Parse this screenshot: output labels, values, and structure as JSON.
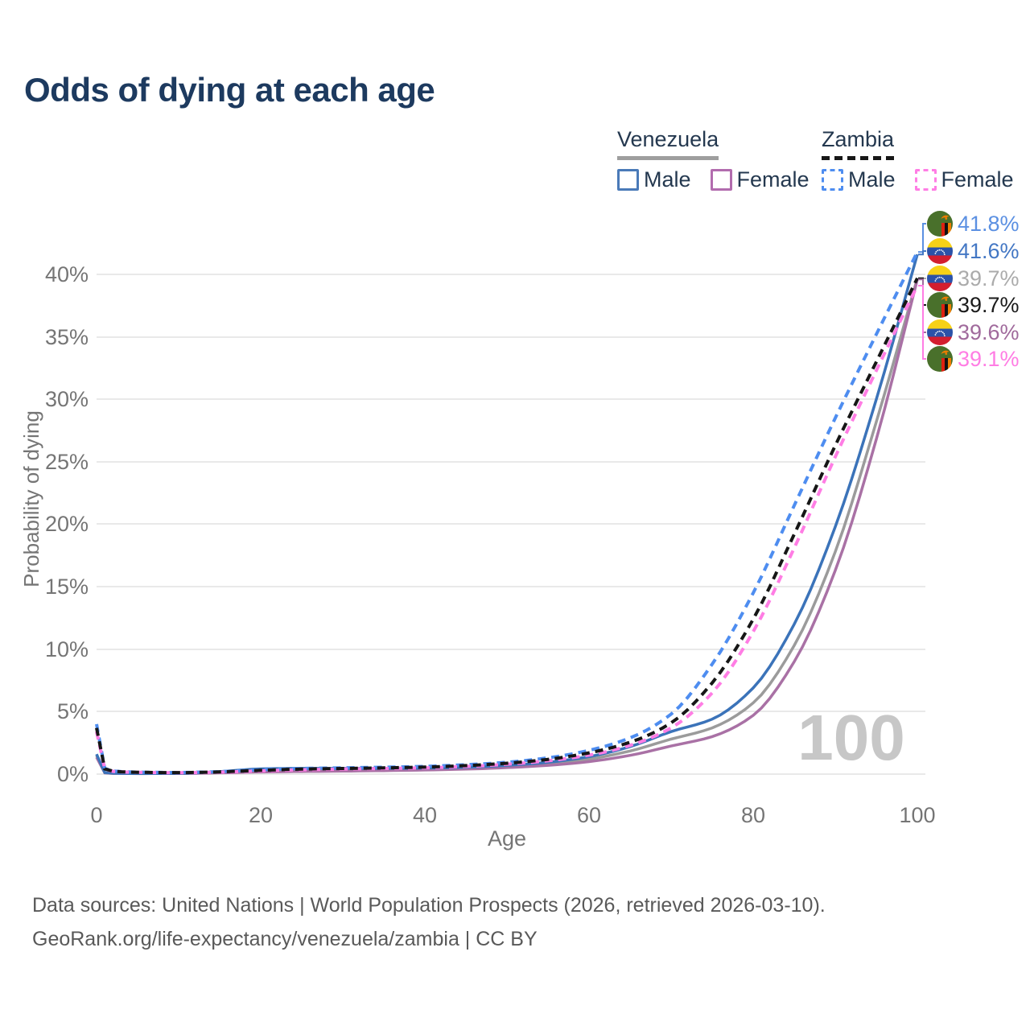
{
  "title": "Odds of dying at each age",
  "legend": {
    "venezuela": {
      "label": "Venezuela",
      "male_label": "Male",
      "female_label": "Female"
    },
    "zambia": {
      "label": "Zambia",
      "male_label": "Male",
      "female_label": "Female"
    }
  },
  "chart_data": {
    "type": "line",
    "title": "Odds of dying at each age",
    "xlabel": "Age",
    "ylabel": "Probability of dying",
    "x_range": [
      0,
      100
    ],
    "y_range_pct": [
      0,
      43
    ],
    "x_ticks": [
      "0",
      "20",
      "40",
      "60",
      "80",
      "100"
    ],
    "y_ticks": [
      "0%",
      "5%",
      "10%",
      "15%",
      "20%",
      "25%",
      "30%",
      "35%",
      "40%"
    ],
    "grid": "horizontal",
    "legend_position": "top-right",
    "watermark": "100",
    "ages": [
      0,
      1,
      2,
      5,
      10,
      15,
      20,
      25,
      30,
      35,
      40,
      45,
      50,
      55,
      60,
      65,
      70,
      75,
      80,
      85,
      90,
      95,
      100
    ],
    "series": [
      {
        "name": "Venezuela Both sexes",
        "country": "Venezuela",
        "sex": "Both",
        "style": "solid",
        "color": "#9B9B9B",
        "values_pct": [
          1.5,
          0.11,
          0.06,
          0.05,
          0.05,
          0.15,
          0.3,
          0.34,
          0.35,
          0.37,
          0.4,
          0.47,
          0.6,
          0.82,
          1.2,
          1.85,
          2.8,
          3.7,
          5.7,
          10.3,
          17.8,
          28.2,
          39.7
        ],
        "end_value": "39.7%"
      },
      {
        "name": "Venezuela Female",
        "country": "Venezuela",
        "sex": "Female",
        "style": "solid",
        "color": "#A971A5",
        "values_pct": [
          1.35,
          0.1,
          0.06,
          0.04,
          0.05,
          0.1,
          0.17,
          0.21,
          0.24,
          0.28,
          0.33,
          0.4,
          0.52,
          0.7,
          1.0,
          1.5,
          2.25,
          3.0,
          4.7,
          9.0,
          16.3,
          26.8,
          39.6
        ],
        "end_value": "39.6%"
      },
      {
        "name": "Venezuela Male",
        "country": "Venezuela",
        "sex": "Male",
        "style": "solid",
        "color": "#3B73B9",
        "values_pct": [
          1.6,
          0.12,
          0.07,
          0.05,
          0.06,
          0.2,
          0.42,
          0.46,
          0.46,
          0.46,
          0.48,
          0.55,
          0.7,
          0.95,
          1.4,
          2.2,
          3.4,
          4.4,
          6.9,
          12.0,
          19.8,
          30.0,
          41.6
        ],
        "end_value": "41.6%"
      },
      {
        "name": "Zambia Male",
        "country": "Zambia",
        "sex": "Male",
        "style": "dashed",
        "color": "#4E8DF0",
        "values_pct": [
          4.0,
          0.45,
          0.25,
          0.16,
          0.13,
          0.2,
          0.35,
          0.45,
          0.5,
          0.55,
          0.62,
          0.75,
          0.95,
          1.3,
          1.9,
          2.9,
          4.8,
          8.8,
          14.5,
          21.5,
          28.5,
          35.2,
          41.8
        ],
        "end_value": "41.8%"
      },
      {
        "name": "Zambia Female",
        "country": "Zambia",
        "sex": "Female",
        "style": "dashed",
        "color": "#FF7DE4",
        "values_pct": [
          3.4,
          0.4,
          0.22,
          0.14,
          0.11,
          0.16,
          0.26,
          0.34,
          0.4,
          0.45,
          0.5,
          0.61,
          0.79,
          1.07,
          1.52,
          2.3,
          3.7,
          6.5,
          11.4,
          18.1,
          25.4,
          32.3,
          39.1
        ],
        "end_value": "39.1%"
      },
      {
        "name": "Zambia Both sexes",
        "country": "Zambia",
        "sex": "Both",
        "style": "dashed",
        "color": "#161616",
        "values_pct": [
          3.7,
          0.42,
          0.23,
          0.15,
          0.12,
          0.18,
          0.3,
          0.4,
          0.45,
          0.5,
          0.56,
          0.68,
          0.87,
          1.18,
          1.7,
          2.55,
          4.1,
          7.3,
          12.4,
          19.2,
          26.3,
          33.0,
          39.7
        ],
        "end_value": "39.7%"
      }
    ],
    "end_labels": [
      {
        "value": "41.8%",
        "series": "Zambia Male",
        "flag": "zambia",
        "flag_ref": "#flag-zambia",
        "color": "#5B90E2"
      },
      {
        "value": "41.6%",
        "series": "Venezuela Male",
        "flag": "venezuela",
        "flag_ref": "#flag-venezuela",
        "color": "#4377C4"
      },
      {
        "value": "39.7%",
        "series": "Venezuela Both sexes",
        "flag": "venezuela",
        "flag_ref": "#flag-venezuela",
        "color": "#ABABAB"
      },
      {
        "value": "39.7%",
        "series": "Zambia Both sexes",
        "flag": "zambia",
        "flag_ref": "#flag-zambia",
        "color": "#1A1A1A"
      },
      {
        "value": "39.6%",
        "series": "Venezuela Female",
        "flag": "venezuela",
        "flag_ref": "#flag-venezuela",
        "color": "#A06A9C"
      },
      {
        "value": "39.1%",
        "series": "Zambia Female",
        "flag": "zambia",
        "flag_ref": "#flag-zambia",
        "color": "#FF7DE4"
      }
    ]
  },
  "footer": {
    "line1": "Data sources: United Nations | World Population Prospects (2026, retrieved 2026-03-10).",
    "line2": "GeoRank.org/life-expectancy/venezuela/zambia | CC BY"
  }
}
